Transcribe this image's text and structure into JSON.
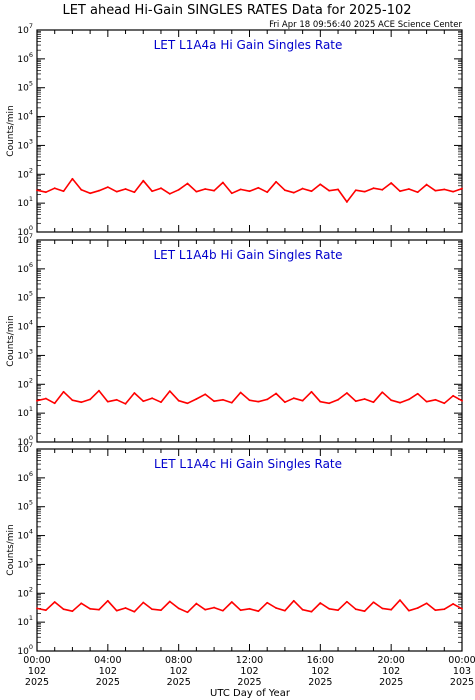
{
  "page": {
    "title": "LET ahead Hi-Gain SINGLES RATES Data for 2025-102",
    "timestamp": "Fri Apr 18 09:56:40 2025 ACE Science Center",
    "xlabel": "UTC Day of Year"
  },
  "colors": {
    "series": "#ff0000",
    "panel_title": "#0000cc",
    "axis": "#000000"
  },
  "x_ticks": [
    {
      "time": "00:00",
      "day": "102",
      "year": "2025"
    },
    {
      "time": "04:00",
      "day": "102",
      "year": "2025"
    },
    {
      "time": "08:00",
      "day": "102",
      "year": "2025"
    },
    {
      "time": "12:00",
      "day": "102",
      "year": "2025"
    },
    {
      "time": "16:00",
      "day": "102",
      "year": "2025"
    },
    {
      "time": "20:00",
      "day": "102",
      "year": "2025"
    },
    {
      "time": "00:00",
      "day": "103",
      "year": "2025"
    }
  ],
  "chart_data": [
    {
      "type": "line",
      "title": "LET L1A4a Hi Gain Singles Rate",
      "ylabel": "Counts/min",
      "yscale": "log",
      "ylim": [
        1,
        10000000
      ],
      "y_tick_labels": [
        {
          "base": "10",
          "exp": "0"
        },
        {
          "base": "10",
          "exp": "1"
        },
        {
          "base": "10",
          "exp": "2"
        },
        {
          "base": "10",
          "exp": "3"
        },
        {
          "base": "10",
          "exp": "4"
        },
        {
          "base": "10",
          "exp": "5"
        },
        {
          "base": "10",
          "exp": "6"
        },
        {
          "base": "10",
          "exp": "7"
        }
      ],
      "xlim_hours": [
        0,
        24
      ],
      "x_hours": [
        0,
        0.5,
        1,
        1.5,
        2,
        2.5,
        3,
        3.5,
        4,
        4.5,
        5,
        5.5,
        6,
        6.5,
        7,
        7.5,
        8,
        8.5,
        9,
        9.5,
        10,
        10.5,
        11,
        11.5,
        12,
        12.5,
        13,
        13.5,
        14,
        14.5,
        15,
        15.5,
        16,
        16.5,
        17,
        17.5,
        18,
        18.5,
        19,
        19.5,
        20,
        20.5,
        21,
        21.5,
        22,
        22.5,
        23,
        23.5,
        24
      ],
      "series": [
        {
          "values": [
            28,
            24,
            33,
            26,
            70,
            29,
            22,
            27,
            36,
            25,
            31,
            24,
            60,
            26,
            33,
            21,
            29,
            48,
            25,
            31,
            27,
            52,
            22,
            30,
            26,
            34,
            24,
            55,
            28,
            23,
            32,
            26,
            45,
            27,
            30,
            11,
            28,
            25,
            33,
            29,
            50,
            26,
            31,
            24,
            44,
            27,
            30,
            25,
            32
          ]
        }
      ]
    },
    {
      "type": "line",
      "title": "LET L1A4b Hi Gain Singles Rate",
      "ylabel": "Counts/min",
      "yscale": "log",
      "ylim": [
        1,
        10000000
      ],
      "y_tick_labels": [
        {
          "base": "10",
          "exp": "0"
        },
        {
          "base": "10",
          "exp": "1"
        },
        {
          "base": "10",
          "exp": "2"
        },
        {
          "base": "10",
          "exp": "3"
        },
        {
          "base": "10",
          "exp": "4"
        },
        {
          "base": "10",
          "exp": "5"
        },
        {
          "base": "10",
          "exp": "6"
        },
        {
          "base": "10",
          "exp": "7"
        }
      ],
      "xlim_hours": [
        0,
        24
      ],
      "x_hours": [
        0,
        0.5,
        1,
        1.5,
        2,
        2.5,
        3,
        3.5,
        4,
        4.5,
        5,
        5.5,
        6,
        6.5,
        7,
        7.5,
        8,
        8.5,
        9,
        9.5,
        10,
        10.5,
        11,
        11.5,
        12,
        12.5,
        13,
        13.5,
        14,
        14.5,
        15,
        15.5,
        16,
        16.5,
        17,
        17.5,
        18,
        18.5,
        19,
        19.5,
        20,
        20.5,
        21,
        21.5,
        22,
        22.5,
        23,
        23.5,
        24
      ],
      "series": [
        {
          "values": [
            27,
            32,
            22,
            55,
            28,
            24,
            30,
            60,
            25,
            29,
            21,
            50,
            26,
            33,
            24,
            58,
            27,
            22,
            31,
            45,
            26,
            29,
            23,
            52,
            28,
            25,
            30,
            48,
            24,
            33,
            27,
            55,
            25,
            22,
            29,
            50,
            26,
            31,
            24,
            53,
            28,
            23,
            30,
            47,
            25,
            29,
            22,
            40,
            27
          ]
        }
      ]
    },
    {
      "type": "line",
      "title": "LET L1A4c Hi Gain Singles Rate",
      "ylabel": "Counts/min",
      "yscale": "log",
      "ylim": [
        1,
        10000000
      ],
      "y_tick_labels": [
        {
          "base": "10",
          "exp": "0"
        },
        {
          "base": "10",
          "exp": "1"
        },
        {
          "base": "10",
          "exp": "2"
        },
        {
          "base": "10",
          "exp": "3"
        },
        {
          "base": "10",
          "exp": "4"
        },
        {
          "base": "10",
          "exp": "5"
        },
        {
          "base": "10",
          "exp": "6"
        },
        {
          "base": "10",
          "exp": "7"
        }
      ],
      "xlim_hours": [
        0,
        24
      ],
      "x_hours": [
        0,
        0.5,
        1,
        1.5,
        2,
        2.5,
        3,
        3.5,
        4,
        4.5,
        5,
        5.5,
        6,
        6.5,
        7,
        7.5,
        8,
        8.5,
        9,
        9.5,
        10,
        10.5,
        11,
        11.5,
        12,
        12.5,
        13,
        13.5,
        14,
        14.5,
        15,
        15.5,
        16,
        16.5,
        17,
        17.5,
        18,
        18.5,
        19,
        19.5,
        20,
        20.5,
        21,
        21.5,
        22,
        22.5,
        23,
        23.5,
        24
      ],
      "series": [
        {
          "values": [
            30,
            26,
            50,
            28,
            24,
            45,
            29,
            27,
            55,
            25,
            31,
            23,
            48,
            28,
            26,
            52,
            30,
            22,
            44,
            27,
            32,
            25,
            50,
            26,
            29,
            24,
            47,
            31,
            25,
            55,
            27,
            23,
            46,
            29,
            26,
            51,
            28,
            24,
            49,
            30,
            27,
            58,
            25,
            31,
            45,
            26,
            28,
            43,
            29
          ]
        }
      ]
    }
  ]
}
